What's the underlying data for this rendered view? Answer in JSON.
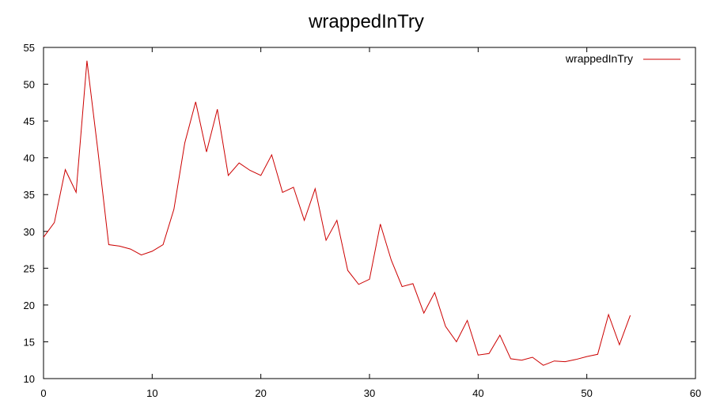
{
  "chart_data": {
    "type": "line",
    "title": "wrappedInTry",
    "xlabel": "",
    "ylabel": "",
    "xlim": [
      0,
      60
    ],
    "ylim": [
      10,
      55
    ],
    "x_ticks": [
      0,
      10,
      20,
      30,
      40,
      50,
      60
    ],
    "y_ticks": [
      10,
      15,
      20,
      25,
      30,
      35,
      40,
      45,
      50,
      55
    ],
    "grid": false,
    "legend_position": "top-right",
    "series": [
      {
        "name": "wrappedInTry",
        "color": "#cc0000",
        "x": [
          0,
          1,
          2,
          3,
          4,
          5,
          6,
          7,
          8,
          9,
          10,
          11,
          12,
          13,
          14,
          15,
          16,
          17,
          18,
          19,
          20,
          21,
          22,
          23,
          24,
          25,
          26,
          27,
          28,
          29,
          30,
          31,
          32,
          33,
          34,
          35,
          36,
          37,
          38,
          39,
          40,
          41,
          42,
          43,
          44,
          45,
          46,
          47,
          48,
          49,
          50,
          51,
          52,
          53,
          54
        ],
        "values": [
          29.2,
          31.2,
          38.4,
          35.3,
          53.2,
          41.0,
          28.2,
          28.0,
          27.6,
          26.8,
          27.3,
          28.2,
          33.0,
          42.0,
          47.6,
          40.8,
          46.6,
          37.6,
          39.3,
          38.3,
          37.6,
          40.4,
          35.3,
          36.0,
          31.5,
          35.8,
          28.8,
          31.5,
          24.7,
          22.8,
          23.5,
          31.0,
          26.1,
          22.5,
          22.9,
          18.9,
          21.7,
          17.1,
          15.0,
          17.9,
          13.2,
          13.4,
          15.9,
          12.7,
          12.5,
          12.9,
          11.8,
          12.4,
          12.3,
          12.6,
          13.0,
          13.3,
          18.7,
          14.6,
          18.6
        ]
      }
    ]
  }
}
